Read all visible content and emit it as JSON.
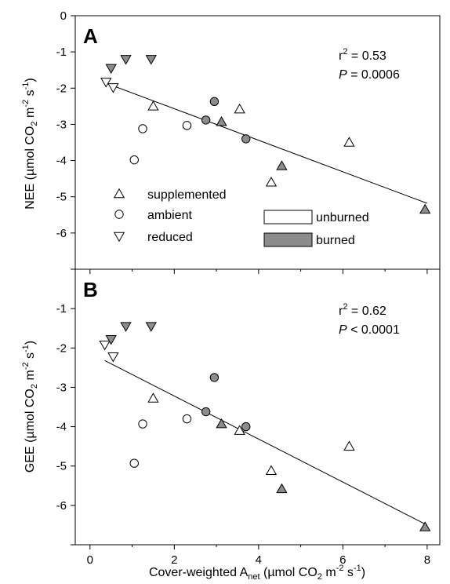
{
  "chart_data": [
    {
      "type": "scatter",
      "panel_label": "A",
      "ylabel_prefix": "NEE (",
      "ylabel_unit": "µmol CO",
      "ylabel_sub": "2",
      "ylabel_m": " m",
      "ylabel_exp1": "-2",
      "ylabel_s": " s",
      "ylabel_exp2": "-1",
      "ylabel_suffix": ")",
      "xlim": [
        -0.35,
        8.3
      ],
      "ylim": [
        -7,
        0
      ],
      "yticks": [
        0,
        -1,
        -2,
        -3,
        -4,
        -5,
        -6,
        -7
      ],
      "ytick_labels": [
        "0",
        "-1",
        "-2",
        "-3",
        "-4",
        "-5",
        "-6",
        ""
      ],
      "stats": {
        "r2_label": "r",
        "r2_sup": "2",
        "r2_value": " = 0.53",
        "p_label": "P",
        "p_value": " = 0.0006"
      },
      "fit_line": {
        "x": [
          0.35,
          8.0
        ],
        "y": [
          -1.85,
          -5.18
        ]
      },
      "series": [
        {
          "treatment": "supplemented",
          "fire": "unburned",
          "marker": "triangle-up",
          "fill": "#ffffff",
          "x": [
            1.5,
            3.55,
            4.3,
            6.15
          ],
          "y": [
            -2.5,
            -2.58,
            -4.6,
            -3.5
          ]
        },
        {
          "treatment": "supplemented",
          "fire": "burned",
          "marker": "triangle-up",
          "fill": "#8c8c8c",
          "x": [
            3.12,
            4.55,
            7.95
          ],
          "y": [
            -2.93,
            -4.15,
            -5.35
          ]
        },
        {
          "treatment": "ambient",
          "fire": "unburned",
          "marker": "circle",
          "fill": "#ffffff",
          "x": [
            1.25,
            1.05,
            2.3
          ],
          "y": [
            -3.12,
            -3.98,
            -3.03
          ]
        },
        {
          "treatment": "ambient",
          "fire": "burned",
          "marker": "circle",
          "fill": "#8c8c8c",
          "x": [
            2.95,
            2.75,
            3.7
          ],
          "y": [
            -2.37,
            -2.88,
            -3.4
          ]
        },
        {
          "treatment": "reduced",
          "fire": "unburned",
          "marker": "triangle-down",
          "fill": "#ffffff",
          "x": [
            0.38,
            0.55
          ],
          "y": [
            -1.83,
            -1.98
          ]
        },
        {
          "treatment": "reduced",
          "fire": "burned",
          "marker": "triangle-down",
          "fill": "#8c8c8c",
          "x": [
            0.5,
            0.85,
            1.45
          ],
          "y": [
            -1.45,
            -1.2,
            -1.2
          ]
        }
      ],
      "legend": {
        "markers": [
          {
            "marker": "triangle-up",
            "label": "supplemented"
          },
          {
            "marker": "circle",
            "label": "ambient"
          },
          {
            "marker": "triangle-down",
            "label": "reduced"
          }
        ],
        "fills": [
          {
            "fill": "#ffffff",
            "label": "unburned"
          },
          {
            "fill": "#8c8c8c",
            "label": "burned"
          }
        ]
      }
    },
    {
      "type": "scatter",
      "panel_label": "B",
      "ylabel_prefix": "GEE (",
      "ylabel_unit": "µmol CO",
      "ylabel_sub": "2",
      "ylabel_m": " m",
      "ylabel_exp1": "-2",
      "ylabel_s": " s",
      "ylabel_exp2": "-1",
      "ylabel_suffix": ")",
      "xlim": [
        -0.35,
        8.3
      ],
      "ylim": [
        -7,
        0
      ],
      "yticks": [
        0,
        -1,
        -2,
        -3,
        -4,
        -5,
        -6,
        -7
      ],
      "ytick_labels": [
        "",
        "-1",
        "-2",
        "-3",
        "-4",
        "-5",
        "-6",
        ""
      ],
      "stats": {
        "r2_label": "r",
        "r2_sup": "2",
        "r2_value": " = 0.62",
        "p_label": "P",
        "p_value": " < 0.0001"
      },
      "fit_line": {
        "x": [
          0.35,
          8.0
        ],
        "y": [
          -2.32,
          -6.5
        ]
      },
      "series": [
        {
          "treatment": "supplemented",
          "fire": "unburned",
          "marker": "triangle-up",
          "fill": "#ffffff",
          "x": [
            1.5,
            3.55,
            4.3,
            6.15
          ],
          "y": [
            -3.28,
            -4.1,
            -5.12,
            -4.5
          ]
        },
        {
          "treatment": "supplemented",
          "fire": "burned",
          "marker": "triangle-up",
          "fill": "#8c8c8c",
          "x": [
            3.12,
            4.55,
            7.95
          ],
          "y": [
            -3.93,
            -5.58,
            -6.55
          ]
        },
        {
          "treatment": "ambient",
          "fire": "unburned",
          "marker": "circle",
          "fill": "#ffffff",
          "x": [
            1.25,
            1.05,
            2.3
          ],
          "y": [
            -3.93,
            -4.93,
            -3.8
          ]
        },
        {
          "treatment": "ambient",
          "fire": "burned",
          "marker": "circle",
          "fill": "#8c8c8c",
          "x": [
            2.95,
            2.75,
            3.7
          ],
          "y": [
            -2.75,
            -3.62,
            -4.0
          ]
        },
        {
          "treatment": "reduced",
          "fire": "unburned",
          "marker": "triangle-down",
          "fill": "#ffffff",
          "x": [
            0.35,
            0.55
          ],
          "y": [
            -1.92,
            -2.22
          ]
        },
        {
          "treatment": "reduced",
          "fire": "burned",
          "marker": "triangle-down",
          "fill": "#8c8c8c",
          "x": [
            0.5,
            0.85,
            1.45
          ],
          "y": [
            -1.78,
            -1.45,
            -1.45
          ]
        }
      ]
    }
  ],
  "shared_x_axis": {
    "ticks": [
      0,
      2,
      4,
      6,
      8
    ],
    "minor_ticks": [
      1,
      3,
      5,
      7
    ],
    "tick_labels": [
      "0",
      "2",
      "4",
      "6",
      "8"
    ],
    "xlabel_prefix": "Cover-weighted A",
    "xlabel_sub": "net",
    "xlabel_unit": " (µmol CO",
    "xlabel_sub2": "2",
    "xlabel_m": " m",
    "xlabel_exp1": "-2",
    "xlabel_s": " s",
    "xlabel_exp2": "-1",
    "xlabel_suffix": ")"
  }
}
